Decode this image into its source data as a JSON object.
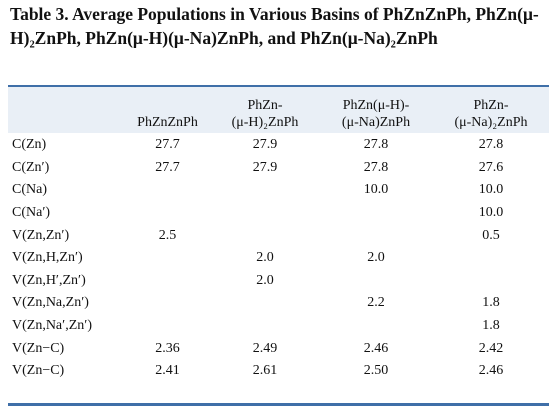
{
  "caption": "Table 3. Average Populations in Various Basins of PhZnZnPh, PhZn(μ-H)₂ZnPh, PhZn(μ-H)(μ-Na)ZnPh, and PhZn(μ-Na)₂ZnPh",
  "header": {
    "col0": "",
    "col1": [
      "",
      "PhZnZnPh"
    ],
    "col2": [
      "PhZn-",
      "(μ-H)₂ZnPh"
    ],
    "col3": [
      "PhZn(μ-H)-",
      "(μ-Na)ZnPh"
    ],
    "col4": [
      "PhZn-",
      "(μ-Na)₂ZnPh"
    ]
  },
  "rows": [
    {
      "label": "C(Zn)",
      "values": [
        "27.7",
        "27.9",
        "27.8",
        "27.8"
      ]
    },
    {
      "label": "C(Zn′)",
      "values": [
        "27.7",
        "27.9",
        "27.8",
        "27.6"
      ]
    },
    {
      "label": "C(Na)",
      "values": [
        "",
        "",
        "10.0",
        "10.0"
      ]
    },
    {
      "label": "C(Na′)",
      "values": [
        "",
        "",
        "",
        "10.0"
      ]
    },
    {
      "label": "V(Zn,Zn′)",
      "values": [
        "2.5",
        "",
        "",
        "0.5"
      ]
    },
    {
      "label": "V(Zn,H,Zn′)",
      "values": [
        "",
        "2.0",
        "2.0",
        ""
      ]
    },
    {
      "label": "V(Zn,H′,Zn′)",
      "values": [
        "",
        "2.0",
        "",
        ""
      ]
    },
    {
      "label": "V(Zn,Na,Zn′)",
      "values": [
        "",
        "",
        "2.2",
        "1.8"
      ]
    },
    {
      "label": "V(Zn,Na′,Zn′)",
      "values": [
        "",
        "",
        "",
        "1.8"
      ]
    },
    {
      "label": "V(Zn−C)",
      "values": [
        "2.36",
        "2.49",
        "2.46",
        "2.42"
      ]
    },
    {
      "label": "V(Zn−C)",
      "values": [
        "2.41",
        "2.61",
        "2.50",
        "2.46"
      ]
    }
  ],
  "colors": {
    "rule": "#3f6fa8",
    "header_band": "#e9eff6",
    "text": "#111111"
  }
}
